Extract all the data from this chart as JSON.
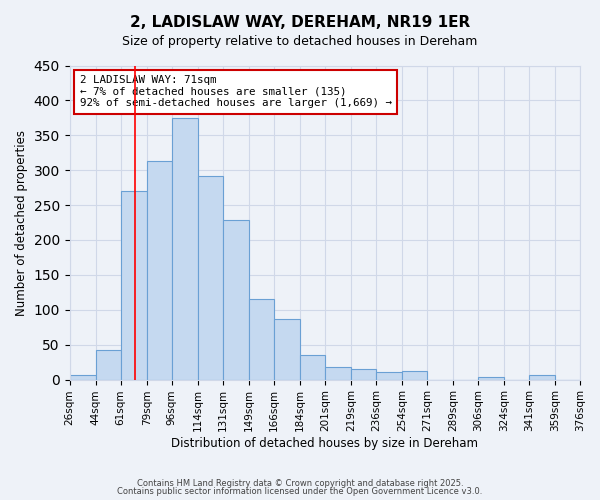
{
  "title": "2, LADISLAW WAY, DEREHAM, NR19 1ER",
  "subtitle": "Size of property relative to detached houses in Dereham",
  "xlabel": "Distribution of detached houses by size in Dereham",
  "ylabel": "Number of detached properties",
  "bin_labels": [
    "26sqm",
    "44sqm",
    "61sqm",
    "79sqm",
    "96sqm",
    "114sqm",
    "131sqm",
    "149sqm",
    "166sqm",
    "184sqm",
    "201sqm",
    "219sqm",
    "236sqm",
    "254sqm",
    "271sqm",
    "289sqm",
    "306sqm",
    "324sqm",
    "341sqm",
    "359sqm",
    "376sqm"
  ],
  "bin_edges": [
    26,
    44,
    61,
    79,
    96,
    114,
    131,
    149,
    166,
    184,
    201,
    219,
    236,
    254,
    271,
    289,
    306,
    324,
    341,
    359,
    376
  ],
  "bar_values": [
    7,
    42,
    270,
    313,
    375,
    291,
    229,
    115,
    87,
    35,
    18,
    15,
    11,
    12,
    0,
    0,
    4,
    0,
    7,
    0
  ],
  "bar_color": "#c5d9f0",
  "bar_edge_color": "#6aa0d4",
  "grid_color": "#d0d8e8",
  "bg_color": "#eef2f8",
  "redline_x": 71,
  "annotation_title": "2 LADISLAW WAY: 71sqm",
  "annotation_line1": "← 7% of detached houses are smaller (135)",
  "annotation_line2": "92% of semi-detached houses are larger (1,669) →",
  "annotation_box_color": "#ffffff",
  "annotation_box_edge": "#cc0000",
  "ylim": [
    0,
    450
  ],
  "yticks": [
    0,
    50,
    100,
    150,
    200,
    250,
    300,
    350,
    400,
    450
  ],
  "footer1": "Contains HM Land Registry data © Crown copyright and database right 2025.",
  "footer2": "Contains public sector information licensed under the Open Government Licence v3.0."
}
